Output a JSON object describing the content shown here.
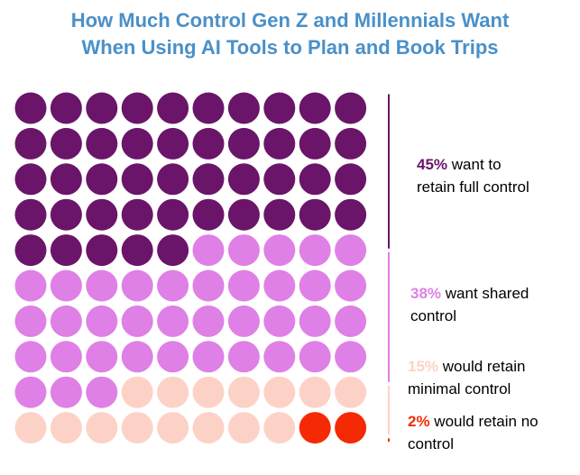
{
  "chart_data": {
    "type": "waffle",
    "title_lines": [
      "How Much Control Gen Z and Millennials Want",
      "When Using AI Tools to Plan and Book Trips"
    ],
    "grid": {
      "rows": 10,
      "columns": 10,
      "total": 100
    },
    "series": [
      {
        "pct_label": "45%",
        "value": 45,
        "line1_rest": " want to",
        "line2": "retain full control",
        "color": "#6a1569"
      },
      {
        "pct_label": "38%",
        "value": 38,
        "line1_rest": " want shared",
        "line2": "control",
        "color": "#df80e6"
      },
      {
        "pct_label": "15%",
        "value": 15,
        "line1_rest": " would retain",
        "line2": "minimal control",
        "color": "#fdd2c6"
      },
      {
        "pct_label": "2%",
        "value": 2,
        "line1_rest": " would retain no",
        "line2": "control",
        "color": "#f52a05"
      }
    ]
  }
}
